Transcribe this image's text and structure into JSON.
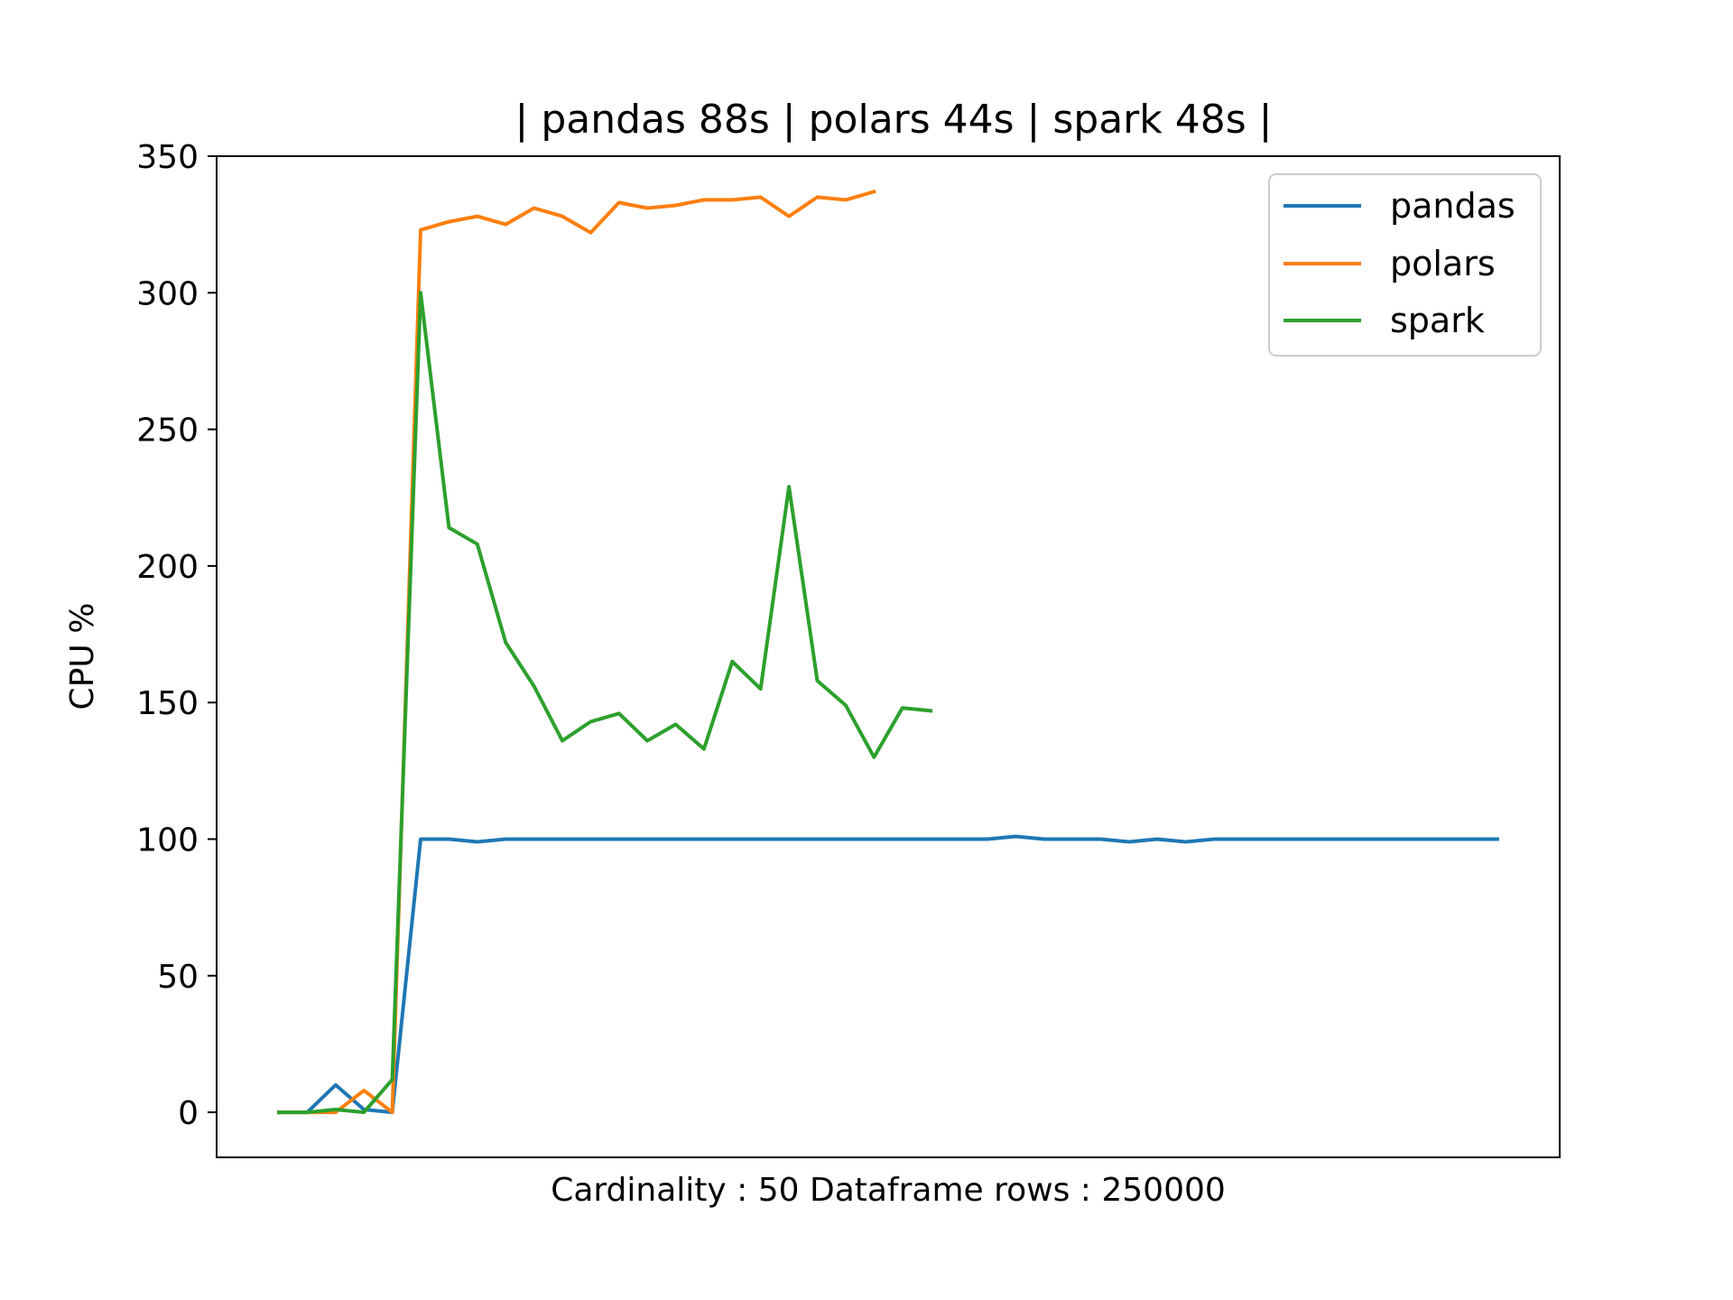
{
  "chart_data": {
    "type": "line",
    "title": "| pandas 88s | polars 44s | spark 48s |",
    "xlabel": "Cardinality : 50 Dataframe rows : 250000",
    "ylabel": "CPU %",
    "ylim": [
      -16.5,
      350
    ],
    "yticks": [
      0,
      50,
      100,
      150,
      200,
      250,
      300,
      350
    ],
    "xlim": [
      -2.2,
      45.2
    ],
    "xticks_visible": false,
    "grid": false,
    "legend_position": "top-right",
    "series": [
      {
        "name": "pandas",
        "color": "#1f77b4",
        "values": [
          0,
          0,
          10,
          1,
          0,
          100,
          100,
          99,
          100,
          100,
          100,
          100,
          100,
          100,
          100,
          100,
          100,
          100,
          100,
          100,
          100,
          100,
          100,
          100,
          100,
          100,
          101,
          100,
          100,
          100,
          99,
          100,
          99,
          100,
          100,
          100,
          100,
          100,
          100,
          100,
          100,
          100,
          100,
          100
        ]
      },
      {
        "name": "polars",
        "color": "#ff7f0e",
        "values": [
          0,
          0,
          0,
          8,
          0,
          323,
          326,
          328,
          325,
          331,
          328,
          322,
          333,
          331,
          332,
          334,
          334,
          335,
          328,
          335,
          334,
          337
        ]
      },
      {
        "name": "spark",
        "color": "#2ca02c",
        "values": [
          0,
          0,
          1,
          0,
          12,
          300,
          214,
          208,
          172,
          156,
          136,
          143,
          146,
          136,
          142,
          133,
          165,
          155,
          229,
          158,
          149,
          130,
          148,
          147
        ]
      }
    ]
  }
}
